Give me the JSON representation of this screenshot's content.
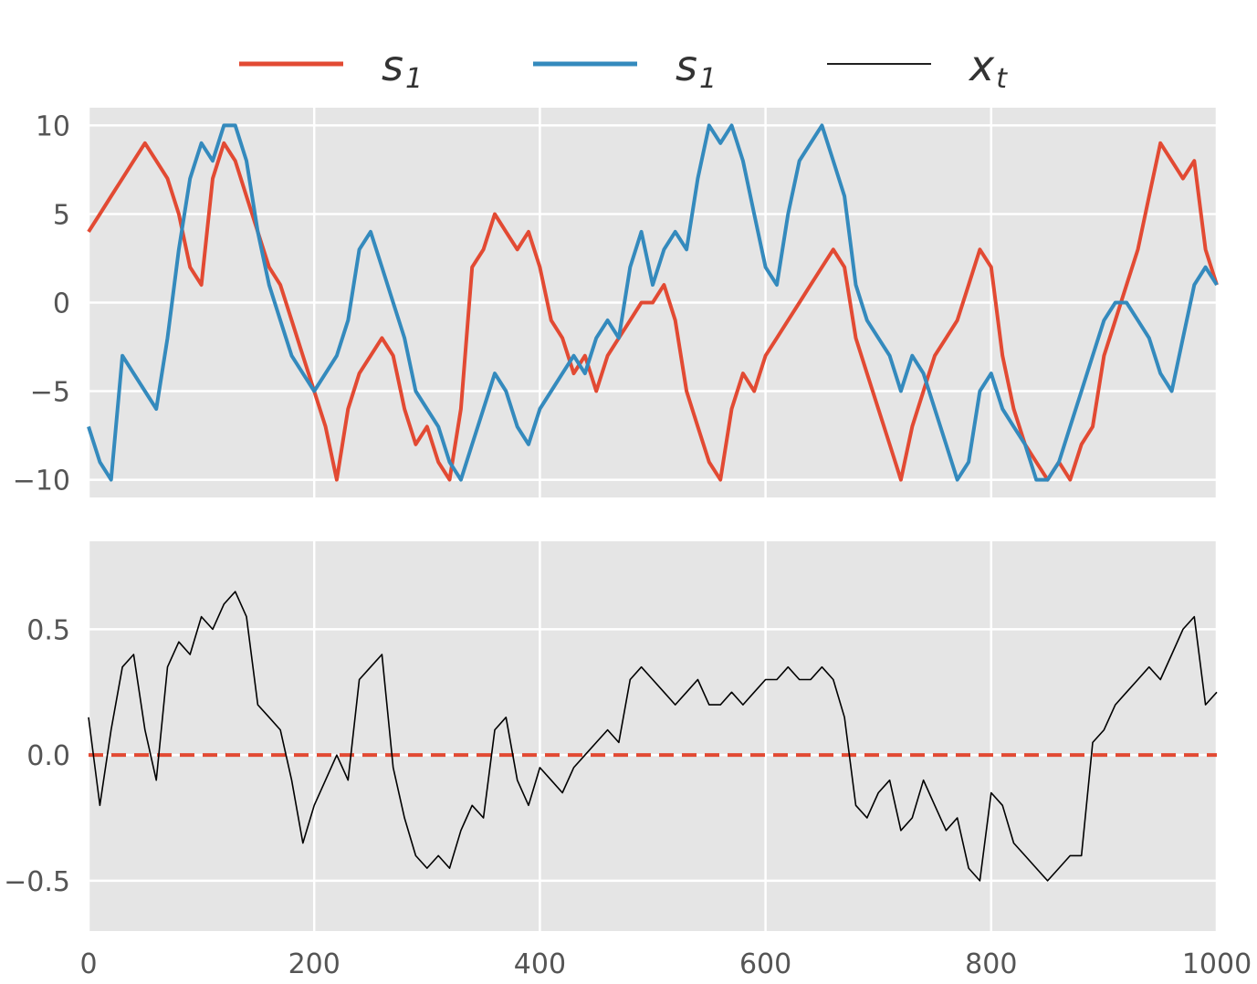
{
  "chart_data": [
    {
      "type": "line",
      "title": "",
      "xlabel": "",
      "ylabel": "",
      "xlim": [
        0,
        1000
      ],
      "ylim": [
        -11,
        11
      ],
      "xticks": [
        0,
        200,
        400,
        600,
        800,
        1000
      ],
      "yticks": [
        -10,
        -5,
        0,
        5,
        10
      ],
      "ytick_labels": [
        "−10",
        "−5",
        "0",
        "5",
        "10"
      ],
      "show_xtick_labels": false,
      "grid": true,
      "legend": {
        "placement": "top-center",
        "entries": [
          {
            "base": "s",
            "sub": "1",
            "color": "#E24A33"
          },
          {
            "base": "s",
            "sub": "1",
            "color": "#348ABD"
          },
          {
            "base": "x",
            "sub": "t",
            "color": "#000000"
          }
        ]
      },
      "series": [
        {
          "color": "#E24A33",
          "x": [
            0,
            10,
            20,
            30,
            40,
            50,
            60,
            70,
            80,
            90,
            100,
            110,
            120,
            130,
            140,
            150,
            160,
            170,
            180,
            190,
            200,
            210,
            220,
            230,
            240,
            250,
            260,
            270,
            280,
            290,
            300,
            310,
            320,
            330,
            340,
            350,
            360,
            370,
            380,
            390,
            400,
            410,
            420,
            430,
            440,
            450,
            460,
            470,
            480,
            490,
            500,
            510,
            520,
            530,
            540,
            550,
            560,
            570,
            580,
            590,
            600,
            610,
            620,
            630,
            640,
            650,
            660,
            670,
            680,
            690,
            700,
            710,
            720,
            730,
            740,
            750,
            760,
            770,
            780,
            790,
            800,
            810,
            820,
            830,
            840,
            850,
            860,
            870,
            880,
            890,
            900,
            910,
            920,
            930,
            940,
            950,
            960,
            970,
            980,
            990,
            1000
          ],
          "y": [
            4,
            5,
            6,
            7,
            8,
            9,
            8,
            7,
            5,
            2,
            1,
            7,
            9,
            8,
            6,
            4,
            2,
            1,
            -1,
            -3,
            -5,
            -7,
            -10,
            -6,
            -4,
            -3,
            -2,
            -3,
            -6,
            -8,
            -7,
            -9,
            -10,
            -6,
            2,
            3,
            5,
            4,
            3,
            4,
            2,
            -1,
            -2,
            -4,
            -3,
            -5,
            -3,
            -2,
            -1,
            0,
            0,
            1,
            -1,
            -5,
            -7,
            -9,
            -10,
            -6,
            -4,
            -5,
            -3,
            -2,
            -1,
            0,
            1,
            2,
            3,
            2,
            -2,
            -4,
            -6,
            -8,
            -10,
            -7,
            -5,
            -3,
            -2,
            -1,
            1,
            3,
            2,
            -3,
            -6,
            -8,
            -9,
            -10,
            -9,
            -10,
            -8,
            -7,
            -3,
            -1,
            1,
            3,
            6,
            9,
            8,
            7,
            8,
            3,
            1
          ]
        },
        {
          "color": "#348ABD",
          "x": [
            0,
            10,
            20,
            30,
            40,
            50,
            60,
            70,
            80,
            90,
            100,
            110,
            120,
            130,
            140,
            150,
            160,
            170,
            180,
            190,
            200,
            210,
            220,
            230,
            240,
            250,
            260,
            270,
            280,
            290,
            300,
            310,
            320,
            330,
            340,
            350,
            360,
            370,
            380,
            390,
            400,
            410,
            420,
            430,
            440,
            450,
            460,
            470,
            480,
            490,
            500,
            510,
            520,
            530,
            540,
            550,
            560,
            570,
            580,
            590,
            600,
            610,
            620,
            630,
            640,
            650,
            660,
            670,
            680,
            690,
            700,
            710,
            720,
            730,
            740,
            750,
            760,
            770,
            780,
            790,
            800,
            810,
            820,
            830,
            840,
            850,
            860,
            870,
            880,
            890,
            900,
            910,
            920,
            930,
            940,
            950,
            960,
            970,
            980,
            990,
            1000
          ],
          "y": [
            -7,
            -9,
            -10,
            -3,
            -4,
            -5,
            -6,
            -2,
            3,
            7,
            9,
            8,
            10,
            10,
            8,
            4,
            1,
            -1,
            -3,
            -4,
            -5,
            -4,
            -3,
            -1,
            3,
            4,
            2,
            0,
            -2,
            -5,
            -6,
            -7,
            -9,
            -10,
            -8,
            -6,
            -4,
            -5,
            -7,
            -8,
            -6,
            -5,
            -4,
            -3,
            -4,
            -2,
            -1,
            -2,
            2,
            4,
            1,
            3,
            4,
            3,
            7,
            10,
            9,
            10,
            8,
            5,
            2,
            1,
            5,
            8,
            9,
            10,
            8,
            6,
            1,
            -1,
            -2,
            -3,
            -5,
            -3,
            -4,
            -6,
            -8,
            -10,
            -9,
            -5,
            -4,
            -6,
            -7,
            -8,
            -10,
            -10,
            -9,
            -7,
            -5,
            -3,
            -1,
            0,
            0,
            -1,
            -2,
            -4,
            -5,
            -2,
            1,
            2,
            1
          ]
        }
      ]
    },
    {
      "type": "line",
      "title": "",
      "xlabel": "",
      "ylabel": "",
      "xlim": [
        0,
        1000
      ],
      "ylim": [
        -0.7,
        0.85
      ],
      "xticks": [
        0,
        200,
        400,
        600,
        800,
        1000
      ],
      "xtick_labels": [
        "0",
        "200",
        "400",
        "600",
        "800",
        "1000"
      ],
      "yticks": [
        -0.5,
        0,
        0.5
      ],
      "ytick_labels": [
        "−0.5",
        "0.0",
        "0.5"
      ],
      "grid": true,
      "reference_line": {
        "y": 0,
        "style": "dashed",
        "color": "#E24A33"
      },
      "series": [
        {
          "color": "#000000",
          "x": [
            0,
            10,
            20,
            30,
            40,
            50,
            60,
            70,
            80,
            90,
            100,
            110,
            120,
            130,
            140,
            150,
            160,
            170,
            180,
            190,
            200,
            210,
            220,
            230,
            240,
            250,
            260,
            270,
            280,
            290,
            300,
            310,
            320,
            330,
            340,
            350,
            360,
            370,
            380,
            390,
            400,
            410,
            420,
            430,
            440,
            450,
            460,
            470,
            480,
            490,
            500,
            510,
            520,
            530,
            540,
            550,
            560,
            570,
            580,
            590,
            600,
            610,
            620,
            630,
            640,
            650,
            660,
            670,
            680,
            690,
            700,
            710,
            720,
            730,
            740,
            750,
            760,
            770,
            780,
            790,
            800,
            810,
            820,
            830,
            840,
            850,
            860,
            870,
            880,
            890,
            900,
            910,
            920,
            930,
            940,
            950,
            960,
            970,
            980,
            990,
            1000
          ],
          "y": [
            0.15,
            -0.2,
            0.1,
            0.35,
            0.4,
            0.1,
            -0.1,
            0.35,
            0.45,
            0.4,
            0.55,
            0.5,
            0.6,
            0.65,
            0.55,
            0.2,
            0.15,
            0.1,
            -0.1,
            -0.35,
            -0.2,
            -0.1,
            0.0,
            -0.1,
            0.3,
            0.35,
            0.4,
            -0.05,
            -0.25,
            -0.4,
            -0.45,
            -0.4,
            -0.45,
            -0.3,
            -0.2,
            -0.25,
            0.1,
            0.15,
            -0.1,
            -0.2,
            -0.05,
            -0.1,
            -0.15,
            -0.05,
            0.0,
            0.05,
            0.1,
            0.05,
            0.3,
            0.35,
            0.3,
            0.25,
            0.2,
            0.25,
            0.3,
            0.2,
            0.2,
            0.25,
            0.2,
            0.25,
            0.3,
            0.3,
            0.35,
            0.3,
            0.3,
            0.35,
            0.3,
            0.15,
            -0.2,
            -0.25,
            -0.15,
            -0.1,
            -0.3,
            -0.25,
            -0.1,
            -0.2,
            -0.3,
            -0.25,
            -0.45,
            -0.5,
            -0.15,
            -0.2,
            -0.35,
            -0.4,
            -0.45,
            -0.5,
            -0.45,
            -0.4,
            -0.4,
            0.05,
            0.1,
            0.2,
            0.25,
            0.3,
            0.35,
            0.3,
            0.4,
            0.5,
            0.55,
            0.2,
            0.25
          ]
        }
      ]
    }
  ]
}
